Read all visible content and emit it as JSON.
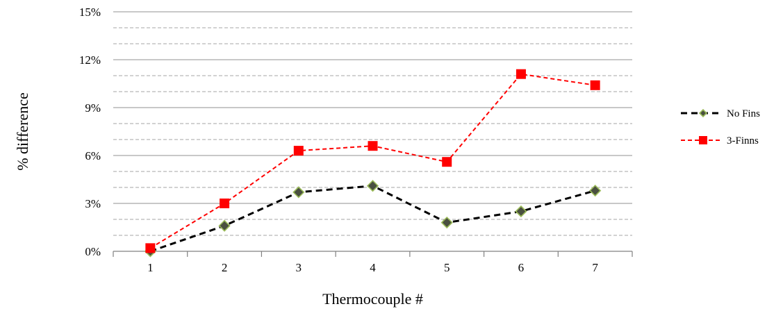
{
  "chart_data": {
    "type": "line",
    "title": "",
    "xlabel": "Thermocouple #",
    "ylabel": "% difference",
    "categories": [
      "1",
      "2",
      "3",
      "4",
      "5",
      "6",
      "7"
    ],
    "ylim": [
      0,
      15
    ],
    "yticks": [
      0,
      3,
      6,
      9,
      12,
      15
    ],
    "ytick_labels": [
      "0%",
      "3%",
      "6%",
      "9%",
      "12%",
      "15%"
    ],
    "grid": "major solid, minor dashed",
    "legend_position": "right",
    "series": [
      {
        "name": "No Fins",
        "values": [
          0.0,
          1.6,
          3.7,
          4.1,
          1.8,
          2.5,
          3.8
        ],
        "color": "#000000",
        "marker": "diamond",
        "marker_fill": "#4a5040",
        "marker_edge": "#9bbb59",
        "line_style": "dashed"
      },
      {
        "name": "3-Finns",
        "values": [
          0.2,
          3.0,
          6.3,
          6.6,
          5.6,
          11.1,
          10.4
        ],
        "color": "#ff0000",
        "marker": "square",
        "marker_fill": "#ff0000",
        "marker_edge": "#ff0000",
        "line_style": "dashed"
      }
    ]
  }
}
